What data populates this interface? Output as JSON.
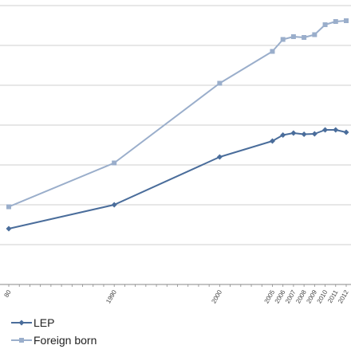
{
  "chart_data": {
    "type": "line",
    "x": [
      "1980",
      "1990",
      "2000",
      "2005",
      "2006",
      "2007",
      "2008",
      "2009",
      "2010",
      "2011",
      "2012"
    ],
    "x_numeric": [
      1980,
      1990,
      2000,
      2005,
      2006,
      2007,
      2008,
      2009,
      2010,
      2011,
      2012
    ],
    "x_tick_labels": [
      "80",
      "1990",
      "2000",
      "2005",
      "2006",
      "2007",
      "2008",
      "2009",
      "2010",
      "2011",
      "2012"
    ],
    "series": [
      {
        "name": "LEP",
        "color": "#4a6d9b",
        "marker": "diamond",
        "values": [
          1.4,
          2.0,
          3.2,
          3.6,
          3.75,
          3.8,
          3.77,
          3.78,
          3.88,
          3.88,
          3.82
        ]
      },
      {
        "name": "Foreign born",
        "color": "#9aaecb",
        "marker": "square",
        "values": [
          1.95,
          3.05,
          5.05,
          5.85,
          6.15,
          6.22,
          6.2,
          6.27,
          6.52,
          6.6,
          6.62
        ]
      }
    ],
    "ylim": [
      0,
      7
    ],
    "y_gridlines": [
      1,
      2,
      3,
      4,
      5,
      6,
      7
    ],
    "grid": true,
    "legend_position": "bottom-left",
    "title": "",
    "xlabel": "",
    "ylabel": ""
  }
}
